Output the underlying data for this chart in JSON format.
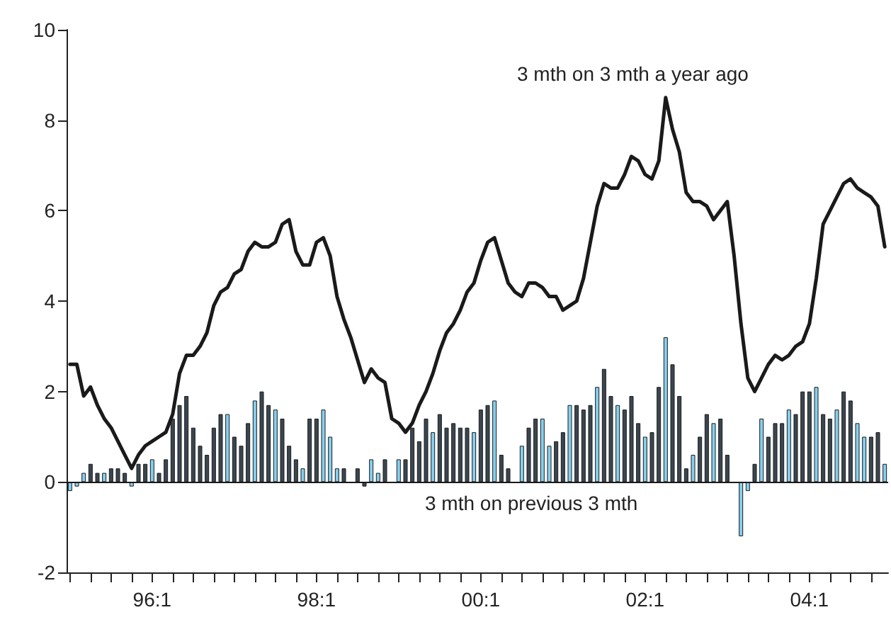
{
  "chart_data": {
    "type": "bar",
    "categories": [
      null,
      null,
      null,
      null,
      null,
      null,
      null,
      null,
      null,
      null,
      null,
      null,
      "96:1",
      null,
      null,
      null,
      null,
      null,
      null,
      null,
      null,
      null,
      null,
      null,
      null,
      null,
      null,
      null,
      null,
      null,
      null,
      null,
      null,
      null,
      null,
      null,
      "98:1",
      null,
      null,
      null,
      null,
      null,
      null,
      null,
      null,
      null,
      null,
      null,
      null,
      null,
      null,
      null,
      null,
      null,
      null,
      null,
      null,
      null,
      null,
      null,
      "00:1",
      null,
      null,
      null,
      null,
      null,
      null,
      null,
      null,
      null,
      null,
      null,
      null,
      null,
      null,
      null,
      null,
      null,
      null,
      null,
      null,
      null,
      null,
      null,
      "02:1",
      null,
      null,
      null,
      null,
      null,
      null,
      null,
      null,
      null,
      null,
      null,
      null,
      null,
      null,
      null,
      null,
      null,
      null,
      null,
      null,
      null,
      null,
      null,
      "04:1",
      null,
      null,
      null,
      null,
      null,
      null,
      null,
      null,
      null,
      null,
      null
    ],
    "ylim": [
      -2,
      10
    ],
    "yticks": [
      -2,
      0,
      2,
      4,
      6,
      8,
      10
    ],
    "marker": "none",
    "line_style": "solid",
    "ref_lines": [
      {
        "axis": "y",
        "value": 0,
        "color": "#1a1a1a"
      }
    ],
    "series": [
      {
        "name": "3 mth on previous 3 mth",
        "color": "#3a4650",
        "values": [
          -0.2,
          -0.1,
          0.2,
          0.4,
          0.2,
          0.2,
          0.3,
          0.3,
          0.2,
          -0.1,
          0.4,
          0.4,
          0.5,
          0.2,
          0.5,
          1.4,
          1.7,
          1.9,
          1.2,
          0.8,
          0.6,
          1.2,
          1.5,
          1.5,
          1.0,
          0.8,
          1.3,
          1.8,
          2.0,
          1.7,
          1.6,
          1.4,
          0.8,
          0.5,
          0.3,
          1.4,
          1.4,
          1.6,
          1.0,
          0.3,
          0.3,
          null,
          0.3,
          -0.1,
          0.5,
          0.2,
          0.5,
          null,
          0.5,
          0.5,
          1.2,
          0.9,
          1.4,
          1.1,
          1.5,
          1.2,
          1.3,
          1.2,
          1.2,
          1.1,
          1.6,
          1.7,
          1.8,
          0.6,
          0.3,
          null,
          0.8,
          1.2,
          1.4,
          1.4,
          0.8,
          0.9,
          1.1,
          1.7,
          1.7,
          1.6,
          1.7,
          2.1,
          2.5,
          1.9,
          1.7,
          1.6,
          1.9,
          1.3,
          1.0,
          1.1,
          2.1,
          3.2,
          2.6,
          1.9,
          0.3,
          0.6,
          1.0,
          1.5,
          1.3,
          1.4,
          0.6,
          null,
          -1.2,
          -0.2,
          0.4,
          1.4,
          1.0,
          1.3,
          1.3,
          1.6,
          1.5,
          2.0,
          2.0,
          2.1,
          1.5,
          1.4,
          1.6,
          2.0,
          1.8,
          1.3,
          1.0,
          1.0,
          1.1,
          0.4
        ],
        "colors": [
          "#86d0f0",
          "#86d0f0",
          "#86d0f0",
          "#3a4650",
          "#3a4650",
          "#86d0f0",
          "#3a4650",
          "#3a4650",
          "#3a4650",
          "#86d0f0",
          "#3a4650",
          "#3a4650",
          "#86d0f0",
          "#3a4650",
          "#3a4650",
          "#3a4650",
          "#3a4650",
          "#3a4650",
          "#3a4650",
          "#3a4650",
          "#3a4650",
          "#3a4650",
          "#3a4650",
          "#86d0f0",
          "#3a4650",
          "#3a4650",
          "#3a4650",
          "#86d0f0",
          "#3a4650",
          "#3a4650",
          "#86d0f0",
          "#3a4650",
          "#3a4650",
          "#3a4650",
          "#86d0f0",
          "#3a4650",
          "#3a4650",
          "#86d0f0",
          "#86d0f0",
          "#86d0f0",
          "#3a4650",
          "#3a4650",
          "#3a4650",
          "#3a4650",
          "#86d0f0",
          "#86d0f0",
          "#3a4650",
          "#3a4650",
          "#86d0f0",
          "#3a4650",
          "#3a4650",
          "#3a4650",
          "#3a4650",
          "#86d0f0",
          "#3a4650",
          "#3a4650",
          "#3a4650",
          "#3a4650",
          "#3a4650",
          "#86d0f0",
          "#3a4650",
          "#3a4650",
          "#86d0f0",
          "#3a4650",
          "#3a4650",
          "#3a4650",
          "#86d0f0",
          "#3a4650",
          "#3a4650",
          "#86d0f0",
          "#86d0f0",
          "#3a4650",
          "#3a4650",
          "#86d0f0",
          "#3a4650",
          "#3a4650",
          "#3a4650",
          "#86d0f0",
          "#3a4650",
          "#3a4650",
          "#86d0f0",
          "#3a4650",
          "#3a4650",
          "#3a4650",
          "#86d0f0",
          "#3a4650",
          "#3a4650",
          "#86d0f0",
          "#3a4650",
          "#3a4650",
          "#3a4650",
          "#86d0f0",
          "#3a4650",
          "#3a4650",
          "#86d0f0",
          "#3a4650",
          "#3a4650",
          "#3a4650",
          "#86d0f0",
          "#86d0f0",
          "#3a4650",
          "#86d0f0",
          "#3a4650",
          "#3a4650",
          "#3a4650",
          "#86d0f0",
          "#3a4650",
          "#3a4650",
          "#3a4650",
          "#86d0f0",
          "#3a4650",
          "#3a4650",
          "#86d0f0",
          "#3a4650",
          "#3a4650",
          "#86d0f0",
          "#86d0f0",
          "#3a4650",
          "#3a4650",
          "#86d0f0"
        ]
      },
      {
        "type": "line",
        "name": "3 mth on 3 mth a year ago",
        "color": "#1a1a1a",
        "values": [
          2.6,
          2.6,
          1.9,
          2.1,
          1.7,
          1.4,
          1.2,
          0.9,
          0.6,
          0.3,
          0.6,
          0.8,
          0.9,
          1.0,
          1.1,
          1.5,
          2.4,
          2.8,
          2.8,
          3.0,
          3.3,
          3.9,
          4.2,
          4.3,
          4.6,
          4.7,
          5.1,
          5.3,
          5.2,
          5.2,
          5.3,
          5.7,
          5.8,
          5.1,
          4.8,
          4.8,
          5.3,
          5.4,
          5.0,
          4.1,
          3.6,
          3.2,
          2.7,
          2.2,
          2.5,
          2.3,
          2.2,
          1.4,
          1.3,
          1.1,
          1.3,
          1.7,
          2.0,
          2.4,
          2.9,
          3.3,
          3.5,
          3.8,
          4.2,
          4.4,
          4.9,
          5.3,
          5.4,
          4.9,
          4.4,
          4.2,
          4.1,
          4.4,
          4.4,
          4.3,
          4.1,
          4.1,
          3.8,
          3.9,
          4.0,
          4.5,
          5.3,
          6.1,
          6.6,
          6.5,
          6.5,
          6.8,
          7.2,
          7.1,
          6.8,
          6.7,
          7.1,
          8.5,
          7.8,
          7.3,
          6.4,
          6.2,
          6.2,
          6.1,
          5.8,
          6.0,
          6.2,
          5.0,
          3.5,
          2.3,
          2.0,
          2.3,
          2.6,
          2.8,
          2.7,
          2.8,
          3.0,
          3.1,
          3.5,
          4.5,
          5.7,
          6.0,
          6.3,
          6.6,
          6.7,
          6.5,
          6.4,
          6.3,
          6.1,
          5.2
        ]
      }
    ]
  }
}
